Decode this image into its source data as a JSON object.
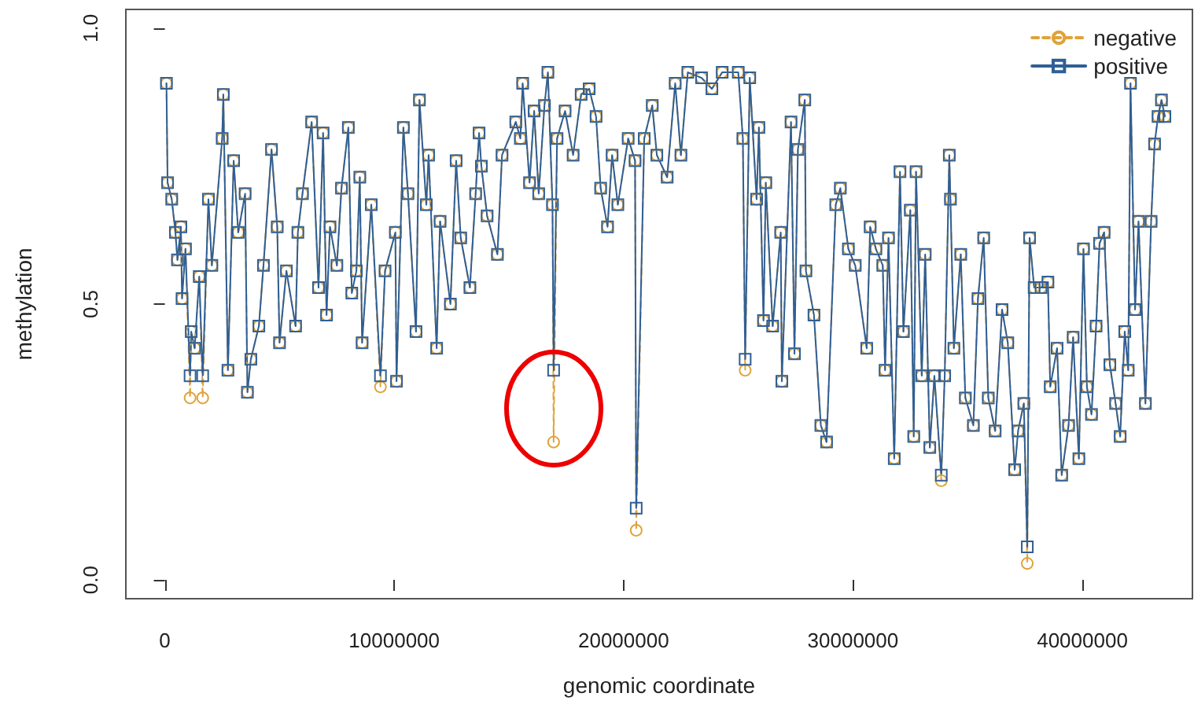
{
  "chart_data": {
    "type": "line",
    "xlabel": "genomic coordinate",
    "ylabel": "methylation",
    "x": [
      70000,
      120000,
      300000,
      460000,
      550000,
      700000,
      750000,
      900000,
      1100000,
      1150000,
      1300000,
      1500000,
      1650000,
      1900000,
      2050000,
      2500000,
      2550000,
      2750000,
      3000000,
      3200000,
      3500000,
      3600000,
      3750000,
      4100000,
      4300000,
      4650000,
      4900000,
      5000000,
      5300000,
      5700000,
      5800000,
      6000000,
      6400000,
      6700000,
      6900000,
      7050000,
      7200000,
      7500000,
      7700000,
      8000000,
      8150000,
      8350000,
      8500000,
      8600000,
      9000000,
      9400000,
      9600000,
      10050000,
      10100000,
      10400000,
      10600000,
      10950000,
      11100000,
      11400000,
      11500000,
      11850000,
      12000000,
      12450000,
      12700000,
      12900000,
      13300000,
      13550000,
      13700000,
      13800000,
      14050000,
      14500000,
      14700000,
      15300000,
      15500000,
      15600000,
      15900000,
      16100000,
      16300000,
      16550000,
      16700000,
      16900000,
      16950000,
      17100000,
      17450000,
      17800000,
      18150000,
      18500000,
      18800000,
      19000000,
      19300000,
      19500000,
      19750000,
      20200000,
      20500000,
      20550000,
      20900000,
      21250000,
      21450000,
      21900000,
      22250000,
      22500000,
      22800000,
      23400000,
      23850000,
      24300000,
      25000000,
      25200000,
      25300000,
      25500000,
      25800000,
      25900000,
      26100000,
      26200000,
      26500000,
      26850000,
      26900000,
      27300000,
      27450000,
      27600000,
      27900000,
      27950000,
      28300000,
      28600000,
      28850000,
      29250000,
      29450000,
      29800000,
      30100000,
      30600000,
      30750000,
      31000000,
      31300000,
      31400000,
      31550000,
      31800000,
      32050000,
      32200000,
      32500000,
      32650000,
      32750000,
      33000000,
      33150000,
      33350000,
      33550000,
      33850000,
      34000000,
      34200000,
      34250000,
      34400000,
      34700000,
      34900000,
      35250000,
      35450000,
      35700000,
      35900000,
      36200000,
      36500000,
      36750000,
      37050000,
      37200000,
      37450000,
      37600000,
      37700000,
      37900000,
      38200000,
      38500000,
      38600000,
      38900000,
      39100000,
      39400000,
      39600000,
      39850000,
      40050000,
      40200000,
      40400000,
      40600000,
      40750000,
      40950000,
      41200000,
      41450000,
      41650000,
      41850000,
      42000000,
      42100000,
      42300000,
      42450000,
      42750000,
      43000000,
      43150000,
      43300000,
      43450000,
      43600000
    ],
    "series": [
      {
        "name": "negative",
        "color": "#e0a33a",
        "marker": "circle",
        "line_style": "dashed",
        "values": [
          0.9,
          0.72,
          0.69,
          0.63,
          0.58,
          0.64,
          0.51,
          0.6,
          0.33,
          0.45,
          0.42,
          0.55,
          0.33,
          0.69,
          0.57,
          0.8,
          0.88,
          0.38,
          0.76,
          0.63,
          0.7,
          0.34,
          0.4,
          0.46,
          0.57,
          0.78,
          0.64,
          0.43,
          0.56,
          0.46,
          0.63,
          0.7,
          0.83,
          0.53,
          0.81,
          0.48,
          0.64,
          0.57,
          0.71,
          0.82,
          0.52,
          0.56,
          0.73,
          0.43,
          0.68,
          0.35,
          0.56,
          0.63,
          0.36,
          0.82,
          0.7,
          0.45,
          0.87,
          0.68,
          0.77,
          0.42,
          0.65,
          0.5,
          0.76,
          0.62,
          0.53,
          0.7,
          0.81,
          0.75,
          0.66,
          0.59,
          0.77,
          0.83,
          0.8,
          0.9,
          0.72,
          0.85,
          0.7,
          0.86,
          0.92,
          0.68,
          0.25,
          0.8,
          0.85,
          0.77,
          0.88,
          0.89,
          0.84,
          0.71,
          0.64,
          0.77,
          0.68,
          0.8,
          0.76,
          0.09,
          0.8,
          0.86,
          0.77,
          0.73,
          0.9,
          0.77,
          0.92,
          0.91,
          0.89,
          0.92,
          0.92,
          0.8,
          0.38,
          0.91,
          0.69,
          0.82,
          0.47,
          0.72,
          0.46,
          0.63,
          0.36,
          0.83,
          0.41,
          0.78,
          0.87,
          0.56,
          0.48,
          0.28,
          0.25,
          0.68,
          0.71,
          0.6,
          0.57,
          0.42,
          0.64,
          0.6,
          0.57,
          0.38,
          0.62,
          0.22,
          0.74,
          0.45,
          0.67,
          0.26,
          0.74,
          0.37,
          0.59,
          0.24,
          0.37,
          0.18,
          0.37,
          0.77,
          0.69,
          0.42,
          0.59,
          0.33,
          0.28,
          0.51,
          0.62,
          0.33,
          0.27,
          0.49,
          0.43,
          0.2,
          0.27,
          0.32,
          0.03,
          0.62,
          0.53,
          0.53,
          0.54,
          0.35,
          0.42,
          0.19,
          0.28,
          0.44,
          0.22,
          0.6,
          0.35,
          0.3,
          0.46,
          0.61,
          0.63,
          0.39,
          0.32,
          0.26,
          0.45,
          0.38,
          0.9,
          0.49,
          0.65,
          0.32,
          0.65,
          0.79,
          0.84,
          0.87,
          0.84
        ]
      },
      {
        "name": "positive",
        "color": "#2f5f96",
        "marker": "square",
        "line_style": "solid",
        "values": [
          0.9,
          0.72,
          0.69,
          0.63,
          0.58,
          0.64,
          0.51,
          0.6,
          0.37,
          0.45,
          0.42,
          0.55,
          0.37,
          0.69,
          0.57,
          0.8,
          0.88,
          0.38,
          0.76,
          0.63,
          0.7,
          0.34,
          0.4,
          0.46,
          0.57,
          0.78,
          0.64,
          0.43,
          0.56,
          0.46,
          0.63,
          0.7,
          0.83,
          0.53,
          0.81,
          0.48,
          0.64,
          0.57,
          0.71,
          0.82,
          0.52,
          0.56,
          0.73,
          0.43,
          0.68,
          0.37,
          0.56,
          0.63,
          0.36,
          0.82,
          0.7,
          0.45,
          0.87,
          0.68,
          0.77,
          0.42,
          0.65,
          0.5,
          0.76,
          0.62,
          0.53,
          0.7,
          0.81,
          0.75,
          0.66,
          0.59,
          0.77,
          0.83,
          0.8,
          0.9,
          0.72,
          0.85,
          0.7,
          0.86,
          0.92,
          0.68,
          0.38,
          0.8,
          0.85,
          0.77,
          0.88,
          0.89,
          0.84,
          0.71,
          0.64,
          0.77,
          0.68,
          0.8,
          0.76,
          0.13,
          0.8,
          0.86,
          0.77,
          0.73,
          0.9,
          0.77,
          0.92,
          0.91,
          0.89,
          0.92,
          0.92,
          0.8,
          0.4,
          0.91,
          0.69,
          0.82,
          0.47,
          0.72,
          0.46,
          0.63,
          0.36,
          0.83,
          0.41,
          0.78,
          0.87,
          0.56,
          0.48,
          0.28,
          0.25,
          0.68,
          0.71,
          0.6,
          0.57,
          0.42,
          0.64,
          0.6,
          0.57,
          0.38,
          0.62,
          0.22,
          0.74,
          0.45,
          0.67,
          0.26,
          0.74,
          0.37,
          0.59,
          0.24,
          0.37,
          0.19,
          0.37,
          0.77,
          0.69,
          0.42,
          0.59,
          0.33,
          0.28,
          0.51,
          0.62,
          0.33,
          0.27,
          0.49,
          0.43,
          0.2,
          0.27,
          0.32,
          0.06,
          0.62,
          0.53,
          0.53,
          0.54,
          0.35,
          0.42,
          0.19,
          0.28,
          0.44,
          0.22,
          0.6,
          0.35,
          0.3,
          0.46,
          0.61,
          0.63,
          0.39,
          0.32,
          0.26,
          0.45,
          0.38,
          0.9,
          0.49,
          0.65,
          0.32,
          0.65,
          0.79,
          0.84,
          0.87,
          0.84
        ]
      }
    ],
    "xlim": [
      -1700000,
      44800000
    ],
    "xticks": [
      0,
      10000000,
      20000000,
      30000000,
      40000000
    ],
    "ylim": [
      -0.034,
      1.034
    ],
    "yticks": [
      {
        "value": 0,
        "label": "0.0"
      },
      {
        "value": 0.5,
        "label": "0.5"
      },
      {
        "value": 1,
        "label": "1.0"
      }
    ],
    "grid": false,
    "legend": "top right"
  }
}
